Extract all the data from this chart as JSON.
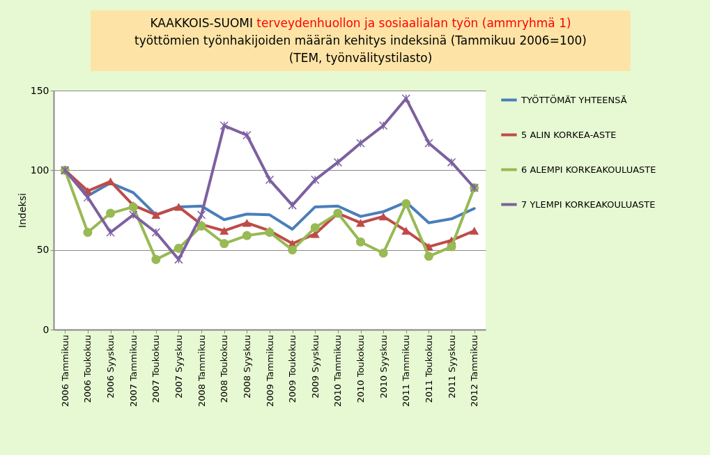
{
  "chart_data": {
    "type": "line",
    "title": "KAAKKOIS-SUOMI",
    "subtitle": "terveydenhuollon ja sosiaalialan työn (ammryhmä 1)",
    "annotations": [
      "työttömien työnhakijoiden määrän kehitys indeksinä (Tammikuu 2006=100)",
      "(TEM, työnvälitystilasto)"
    ],
    "ylabel": "Indeksi",
    "categories": [
      "2006 Tammikuu",
      "2006 Toukokuu",
      "2006 Syyskuu",
      "2007 Tammikuu",
      "2007 Toukokuu",
      "2007 Syyskuu",
      "2008 Tammikuu",
      "2008 Toukokuu",
      "2008 Syyskuu",
      "2009 Tammikuu",
      "2009 Toukokuu",
      "2009 Syyskuu",
      "2010 Tammikuu",
      "2010 Toukokuu",
      "2010 Syyskuu",
      "2011 Tammikuu",
      "2011 Toukokuu",
      "2011 Syyskuu",
      "2012 Tammikuu"
    ],
    "series": [
      {
        "name": "TYÖTTÖMÄT YHTEENSÄ",
        "color": "#4a7ebb",
        "marker": "none",
        "values": [
          100,
          84,
          92,
          86,
          72,
          77,
          77.5,
          69,
          72.5,
          72,
          63,
          77,
          77.5,
          71,
          74,
          80,
          67,
          69.5,
          76
        ]
      },
      {
        "name": "5 ALIN KORKEA-ASTE",
        "color": "#be4b48",
        "marker": "triangle",
        "values": [
          100,
          87,
          93,
          78,
          72,
          77,
          66,
          62,
          67,
          62,
          54,
          60,
          73,
          67,
          71,
          62,
          52,
          56,
          62
        ]
      },
      {
        "name": "6 ALEMPI KORKEAKOULUASTE",
        "color": "#98b954",
        "marker": "circle",
        "values": [
          100,
          61,
          73,
          77,
          44,
          51,
          65,
          54,
          59,
          61,
          50,
          64,
          73,
          55,
          48,
          79,
          46,
          52,
          89
        ]
      },
      {
        "name": "7 YLEMPI KORKEAKOULUASTE",
        "color": "#7d60a0",
        "marker": "cross",
        "values": [
          100,
          83,
          61,
          72,
          61,
          44,
          72,
          128,
          122,
          94,
          78,
          94,
          105,
          117,
          128,
          145,
          117,
          105,
          89
        ]
      }
    ],
    "ylim": [
      0,
      150
    ],
    "yticks": [
      0,
      50,
      100,
      150
    ],
    "grid": "y",
    "legend": "right"
  }
}
